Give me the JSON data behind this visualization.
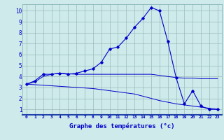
{
  "xlabel": "Graphe des températures (°c)",
  "xlim": [
    -0.5,
    23.5
  ],
  "ylim": [
    0.5,
    10.6
  ],
  "yticks": [
    1,
    2,
    3,
    4,
    5,
    6,
    7,
    8,
    9,
    10
  ],
  "xticks": [
    0,
    1,
    2,
    3,
    4,
    5,
    6,
    7,
    8,
    9,
    10,
    11,
    12,
    13,
    14,
    15,
    16,
    17,
    18,
    19,
    20,
    21,
    22,
    23
  ],
  "background_color": "#ceeaea",
  "grid_color": "#9bbcbc",
  "line_color": "#0000cc",
  "hours": [
    0,
    1,
    2,
    3,
    4,
    5,
    6,
    7,
    8,
    9,
    10,
    11,
    12,
    13,
    14,
    15,
    16,
    17,
    18,
    19,
    20,
    21,
    22,
    23
  ],
  "temp_main": [
    3.3,
    3.6,
    4.2,
    4.2,
    4.3,
    4.2,
    4.3,
    4.5,
    4.7,
    5.3,
    6.5,
    6.7,
    7.5,
    8.5,
    9.3,
    10.3,
    10.0,
    7.2,
    3.9,
    1.5,
    2.7,
    1.3,
    1.0,
    1.0
  ],
  "temp_min": [
    3.3,
    3.25,
    3.2,
    3.15,
    3.1,
    3.05,
    3.0,
    2.95,
    2.9,
    2.8,
    2.7,
    2.6,
    2.5,
    2.4,
    2.2,
    2.0,
    1.8,
    1.65,
    1.5,
    1.4,
    1.3,
    1.2,
    1.1,
    1.0
  ],
  "temp_max": [
    3.3,
    3.5,
    4.0,
    4.2,
    4.3,
    4.25,
    4.2,
    4.2,
    4.2,
    4.2,
    4.2,
    4.2,
    4.2,
    4.2,
    4.2,
    4.2,
    4.1,
    4.0,
    3.9,
    3.85,
    3.85,
    3.8,
    3.8,
    3.8
  ]
}
